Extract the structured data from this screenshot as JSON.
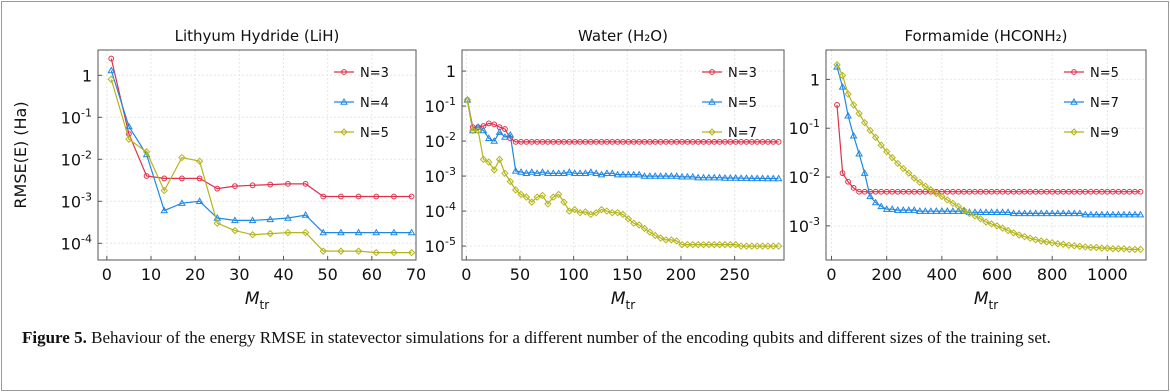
{
  "chart_data": [
    {
      "type": "line",
      "title": "Lithyum Hydride (LiH)",
      "ylabel": "RMSE(E) (Ha)",
      "xlabel_main": "M",
      "xlabel_sub": "tr",
      "yscale": "log",
      "xlim": [
        -2,
        70
      ],
      "ylim": [
        4e-05,
        4
      ],
      "xticks": [
        0,
        10,
        20,
        30,
        40,
        50,
        60,
        70
      ],
      "xtick_labels": [
        "0",
        "10",
        "20",
        "30",
        "40",
        "50",
        "60",
        "70"
      ],
      "yticks": [
        1,
        0.1,
        0.01,
        0.001,
        0.0001
      ],
      "ytick_labels": [
        {
          "base": "1",
          "exp": ""
        },
        {
          "base": "10",
          "exp": "-1"
        },
        {
          "base": "10",
          "exp": "-2"
        },
        {
          "base": "10",
          "exp": "-3"
        },
        {
          "base": "10",
          "exp": "-4"
        }
      ],
      "legend_position": "top-right",
      "series": [
        {
          "name": "N=3",
          "color": "#e0304a",
          "marker": "circle",
          "x": [
            1,
            5,
            9,
            13,
            17,
            21,
            25,
            29,
            33,
            37,
            41,
            45,
            49,
            53,
            57,
            61,
            65,
            69
          ],
          "y": [
            2.5,
            0.04,
            0.004,
            0.0035,
            0.0035,
            0.0035,
            0.002,
            0.0023,
            0.0024,
            0.0025,
            0.0026,
            0.0026,
            0.0013,
            0.0013,
            0.0013,
            0.0013,
            0.0013,
            0.0013
          ]
        },
        {
          "name": "N=4",
          "color": "#1e88e5",
          "marker": "triangle",
          "x": [
            1,
            5,
            9,
            13,
            17,
            21,
            25,
            29,
            33,
            37,
            41,
            45,
            49,
            53,
            57,
            61,
            65,
            69
          ],
          "y": [
            1.3,
            0.06,
            0.013,
            0.0006,
            0.0009,
            0.001,
            0.0004,
            0.00035,
            0.00035,
            0.00037,
            0.0004,
            0.00047,
            0.00018,
            0.00018,
            0.00018,
            0.00018,
            0.00018,
            0.00018
          ]
        },
        {
          "name": "N=5",
          "color": "#b5b51a",
          "marker": "diamond",
          "x": [
            1,
            5,
            9,
            13,
            17,
            21,
            25,
            29,
            33,
            37,
            41,
            45,
            49,
            53,
            57,
            61,
            65,
            69
          ],
          "y": [
            0.8,
            0.03,
            0.015,
            0.0018,
            0.011,
            0.009,
            0.0003,
            0.0002,
            0.00016,
            0.00017,
            0.00018,
            0.00018,
            6.5e-05,
            6.5e-05,
            6.5e-05,
            6e-05,
            6e-05,
            6e-05
          ]
        }
      ]
    },
    {
      "type": "line",
      "title": "Water (H₂O)",
      "ylabel": "",
      "xlabel_main": "M",
      "xlabel_sub": "tr",
      "yscale": "log",
      "xlim": [
        -4,
        296
      ],
      "ylim": [
        4e-06,
        4
      ],
      "xticks": [
        0,
        50,
        100,
        150,
        200,
        250
      ],
      "xtick_labels": [
        "0",
        "50",
        "100",
        "150",
        "200",
        "250"
      ],
      "yticks": [
        1,
        0.1,
        0.01,
        0.001,
        0.0001,
        1e-05
      ],
      "ytick_labels": [
        {
          "base": "1",
          "exp": ""
        },
        {
          "base": "10",
          "exp": "-1"
        },
        {
          "base": "10",
          "exp": "-2"
        },
        {
          "base": "10",
          "exp": "-3"
        },
        {
          "base": "10",
          "exp": "-4"
        },
        {
          "base": "10",
          "exp": "-5"
        }
      ],
      "legend_position": "top-right",
      "series": [
        {
          "name": "N=3",
          "color": "#e0304a",
          "marker": "circle",
          "x": [
            1,
            6,
            11,
            16,
            21,
            26,
            31,
            36,
            41,
            46,
            51,
            56,
            61,
            66,
            71,
            76,
            81,
            86,
            91,
            96,
            101,
            106,
            111,
            116,
            121,
            126,
            131,
            136,
            141,
            146,
            151,
            156,
            161,
            166,
            171,
            176,
            181,
            186,
            191,
            196,
            201,
            206,
            211,
            216,
            221,
            226,
            231,
            236,
            241,
            246,
            251,
            256,
            261,
            266,
            271,
            276,
            281,
            286,
            291
          ],
          "y": [
            0.15,
            0.025,
            0.025,
            0.027,
            0.032,
            0.03,
            0.025,
            0.022,
            0.012,
            0.0095,
            0.0095,
            0.0095,
            0.0095,
            0.0095,
            0.0095,
            0.0095,
            0.0095,
            0.0095,
            0.0095,
            0.0095,
            0.0095,
            0.0095,
            0.0095,
            0.0095,
            0.0095,
            0.0095,
            0.0095,
            0.0095,
            0.0095,
            0.0095,
            0.0095,
            0.0095,
            0.0095,
            0.0095,
            0.0095,
            0.0095,
            0.0095,
            0.0095,
            0.0095,
            0.0095,
            0.0095,
            0.0095,
            0.0095,
            0.0095,
            0.0095,
            0.0095,
            0.0095,
            0.0095,
            0.0095,
            0.0095,
            0.0095,
            0.0095,
            0.0095,
            0.0095,
            0.0095,
            0.0095,
            0.0095,
            0.0095,
            0.0095
          ]
        },
        {
          "name": "N=5",
          "color": "#1e88e5",
          "marker": "triangle",
          "x": [
            1,
            6,
            11,
            16,
            21,
            26,
            31,
            36,
            41,
            46,
            51,
            56,
            61,
            66,
            71,
            76,
            81,
            86,
            91,
            96,
            101,
            106,
            111,
            116,
            121,
            126,
            131,
            136,
            141,
            146,
            151,
            156,
            161,
            166,
            171,
            176,
            181,
            186,
            191,
            196,
            201,
            206,
            211,
            216,
            221,
            226,
            231,
            236,
            241,
            246,
            251,
            256,
            261,
            266,
            271,
            276,
            281,
            286,
            291
          ],
          "y": [
            0.15,
            0.02,
            0.025,
            0.02,
            0.012,
            0.01,
            0.018,
            0.013,
            0.015,
            0.0014,
            0.0013,
            0.0012,
            0.0013,
            0.0012,
            0.0013,
            0.0012,
            0.0012,
            0.0012,
            0.0012,
            0.0013,
            0.0012,
            0.0012,
            0.0012,
            0.0013,
            0.0012,
            0.0011,
            0.0012,
            0.0012,
            0.0011,
            0.0011,
            0.0011,
            0.0011,
            0.0011,
            0.001,
            0.001,
            0.001,
            0.001,
            0.001,
            0.001,
            0.001,
            0.00095,
            0.00095,
            0.00095,
            0.0009,
            0.0009,
            0.0009,
            0.0009,
            0.0009,
            0.00088,
            0.00088,
            0.00088,
            0.00087,
            0.00087,
            0.00086,
            0.00086,
            0.00086,
            0.00085,
            0.00085,
            0.00085
          ]
        },
        {
          "name": "N=7",
          "color": "#b5b51a",
          "marker": "diamond",
          "x": [
            1,
            6,
            11,
            16,
            21,
            26,
            31,
            36,
            41,
            46,
            51,
            56,
            61,
            66,
            71,
            76,
            81,
            86,
            91,
            96,
            101,
            106,
            111,
            116,
            121,
            126,
            131,
            136,
            141,
            146,
            151,
            156,
            161,
            166,
            171,
            176,
            181,
            186,
            191,
            196,
            201,
            206,
            211,
            216,
            221,
            226,
            231,
            236,
            241,
            246,
            251,
            256,
            261,
            266,
            271,
            276,
            281,
            286,
            291
          ],
          "y": [
            0.15,
            0.02,
            0.02,
            0.003,
            0.0025,
            0.0015,
            0.003,
            0.0012,
            0.0007,
            0.0004,
            0.0003,
            0.00025,
            0.00018,
            0.00025,
            0.00028,
            0.00016,
            0.00025,
            0.0003,
            0.00018,
            0.0001,
            0.00011,
            9e-05,
            9.5e-05,
            8e-05,
            9e-05,
            0.00011,
            0.0001,
            9e-05,
            9e-05,
            8e-05,
            6e-05,
            4.5e-05,
            4e-05,
            3.2e-05,
            2.5e-05,
            2e-05,
            1.7e-05,
            1.5e-05,
            1.5e-05,
            1.4e-05,
            1.1e-05,
            1.1e-05,
            1.1e-05,
            1.1e-05,
            1.1e-05,
            1.1e-05,
            1.1e-05,
            1.1e-05,
            1.1e-05,
            1.1e-05,
            1.1e-05,
            1e-05,
            1e-05,
            1e-05,
            1e-05,
            1e-05,
            1e-05,
            1e-05,
            1e-05
          ]
        }
      ]
    },
    {
      "type": "line",
      "title": "Formamide (HCONH₂)",
      "ylabel": "",
      "xlabel_main": "M",
      "xlabel_sub": "tr",
      "yscale": "log",
      "xlim": [
        -20,
        1140
      ],
      "ylim": [
        0.0002,
        4
      ],
      "xticks": [
        0,
        200,
        400,
        600,
        800,
        1000
      ],
      "xtick_labels": [
        "0",
        "200",
        "400",
        "600",
        "800",
        "1000"
      ],
      "yticks": [
        1,
        0.1,
        0.01,
        0.001
      ],
      "ytick_labels": [
        {
          "base": "1",
          "exp": ""
        },
        {
          "base": "10",
          "exp": "-1"
        },
        {
          "base": "10",
          "exp": "-2"
        },
        {
          "base": "10",
          "exp": "-3"
        }
      ],
      "legend_position": "top-right",
      "series": [
        {
          "name": "N=5",
          "color": "#e0304a",
          "marker": "circle",
          "x": [
            20,
            40,
            60,
            80,
            100,
            120,
            140,
            160,
            180,
            200,
            220,
            240,
            260,
            280,
            300,
            320,
            340,
            360,
            380,
            400,
            420,
            440,
            460,
            480,
            500,
            520,
            540,
            560,
            580,
            600,
            620,
            640,
            660,
            680,
            700,
            720,
            740,
            760,
            780,
            800,
            820,
            840,
            860,
            880,
            900,
            920,
            940,
            960,
            980,
            1000,
            1020,
            1040,
            1060,
            1080,
            1100,
            1120
          ],
          "y": [
            0.3,
            0.012,
            0.008,
            0.006,
            0.005,
            0.005,
            0.005,
            0.005,
            0.005,
            0.005,
            0.005,
            0.005,
            0.005,
            0.005,
            0.005,
            0.005,
            0.005,
            0.005,
            0.005,
            0.005,
            0.005,
            0.005,
            0.005,
            0.005,
            0.005,
            0.005,
            0.005,
            0.005,
            0.005,
            0.005,
            0.005,
            0.005,
            0.005,
            0.005,
            0.005,
            0.005,
            0.005,
            0.005,
            0.005,
            0.005,
            0.005,
            0.005,
            0.005,
            0.005,
            0.005,
            0.005,
            0.005,
            0.005,
            0.005,
            0.005,
            0.005,
            0.005,
            0.005,
            0.005,
            0.005,
            0.005
          ]
        },
        {
          "name": "N=7",
          "color": "#1e88e5",
          "marker": "triangle",
          "x": [
            20,
            40,
            60,
            80,
            100,
            120,
            140,
            160,
            180,
            200,
            220,
            240,
            260,
            280,
            300,
            320,
            340,
            360,
            380,
            400,
            420,
            440,
            460,
            480,
            500,
            520,
            540,
            560,
            580,
            600,
            620,
            640,
            660,
            680,
            700,
            720,
            740,
            760,
            780,
            800,
            820,
            840,
            860,
            880,
            900,
            920,
            940,
            960,
            980,
            1000,
            1020,
            1040,
            1060,
            1080,
            1100,
            1120
          ],
          "y": [
            1.8,
            0.7,
            0.18,
            0.07,
            0.03,
            0.012,
            0.004,
            0.003,
            0.0025,
            0.0022,
            0.0022,
            0.0021,
            0.0021,
            0.0021,
            0.0021,
            0.002,
            0.002,
            0.002,
            0.002,
            0.002,
            0.002,
            0.002,
            0.002,
            0.002,
            0.0019,
            0.0019,
            0.0019,
            0.0019,
            0.0019,
            0.0019,
            0.0019,
            0.0019,
            0.0018,
            0.0018,
            0.0018,
            0.0018,
            0.0018,
            0.0018,
            0.0018,
            0.0018,
            0.0018,
            0.0018,
            0.0018,
            0.0018,
            0.0018,
            0.0017,
            0.0017,
            0.0017,
            0.0017,
            0.0017,
            0.0017,
            0.0017,
            0.0017,
            0.0017,
            0.0017,
            0.0017
          ]
        },
        {
          "name": "N=9",
          "color": "#b5b51a",
          "marker": "diamond",
          "x": [
            20,
            40,
            60,
            80,
            100,
            120,
            140,
            160,
            180,
            200,
            220,
            240,
            260,
            280,
            300,
            320,
            340,
            360,
            380,
            400,
            420,
            440,
            460,
            480,
            500,
            520,
            540,
            560,
            580,
            600,
            620,
            640,
            660,
            680,
            700,
            720,
            740,
            760,
            780,
            800,
            820,
            840,
            860,
            880,
            900,
            920,
            940,
            960,
            980,
            1000,
            1020,
            1040,
            1060,
            1080,
            1100,
            1120
          ],
          "y": [
            2.0,
            1.2,
            0.5,
            0.3,
            0.2,
            0.13,
            0.09,
            0.065,
            0.045,
            0.033,
            0.025,
            0.019,
            0.015,
            0.012,
            0.0095,
            0.0078,
            0.0065,
            0.0055,
            0.0046,
            0.004,
            0.0034,
            0.0029,
            0.0025,
            0.0021,
            0.0018,
            0.0016,
            0.0014,
            0.0012,
            0.0011,
            0.001,
            0.0009,
            0.0008,
            0.00072,
            0.00065,
            0.0006,
            0.00056,
            0.00052,
            0.00049,
            0.00047,
            0.00045,
            0.00043,
            0.00042,
            0.0004,
            0.00039,
            0.00038,
            0.00037,
            0.00036,
            0.00036,
            0.00035,
            0.00035,
            0.00034,
            0.00034,
            0.00034,
            0.00033,
            0.00033,
            0.00033
          ]
        }
      ]
    }
  ],
  "caption": {
    "label": "Figure 5.",
    "text": " Behaviour of the energy RMSE in statevector simulations for a different number of the encoding qubits and different sizes of the training set."
  }
}
